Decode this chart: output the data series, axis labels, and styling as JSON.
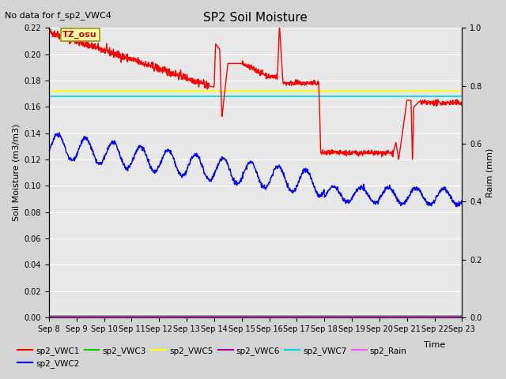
{
  "title": "SP2 Soil Moisture",
  "subtitle": "No data for f_sp2_VWC4",
  "xlabel": "Time",
  "ylabel_left": "Soil Moisture (m3/m3)",
  "ylabel_right": "Raim (mm)",
  "tz_label": "TZ_osu",
  "ylim_left": [
    0.0,
    0.22
  ],
  "ylim_right": [
    0.0,
    1.0
  ],
  "xlim": [
    0,
    15
  ],
  "x_tick_labels": [
    "Sep 8",
    "Sep 9",
    "Sep 10",
    "Sep 11",
    "Sep 12",
    "Sep 13",
    "Sep 14",
    "Sep 15",
    "Sep 16",
    "Sep 17",
    "Sep 18",
    "Sep 19",
    "Sep 20",
    "Sep 21",
    "Sep 22",
    "Sep 23"
  ],
  "y_ticks_left": [
    0.0,
    0.02,
    0.04,
    0.06,
    0.08,
    0.1,
    0.12,
    0.14,
    0.16,
    0.18,
    0.2,
    0.22
  ],
  "y_ticks_right": [
    0.0,
    0.2,
    0.4,
    0.6,
    0.8,
    1.0
  ],
  "colors": {
    "sp2_VWC1": "#ff0000",
    "sp2_VWC2": "#0000ff",
    "sp2_VWC3": "#00cc00",
    "sp2_VWC5": "#ffff00",
    "sp2_VWC6": "#aa00aa",
    "sp2_VWC7": "#00dddd",
    "sp2_Rain": "#ff55ff"
  },
  "vwc5_value": 0.172,
  "vwc7_value": 0.168,
  "background_color": "#d4d4d4",
  "plot_bg_color": "#e8e8e8",
  "title_fontsize": 11,
  "subtitle_fontsize": 8,
  "axis_fontsize": 8,
  "tick_fontsize": 7,
  "legend_fontsize": 7.5
}
